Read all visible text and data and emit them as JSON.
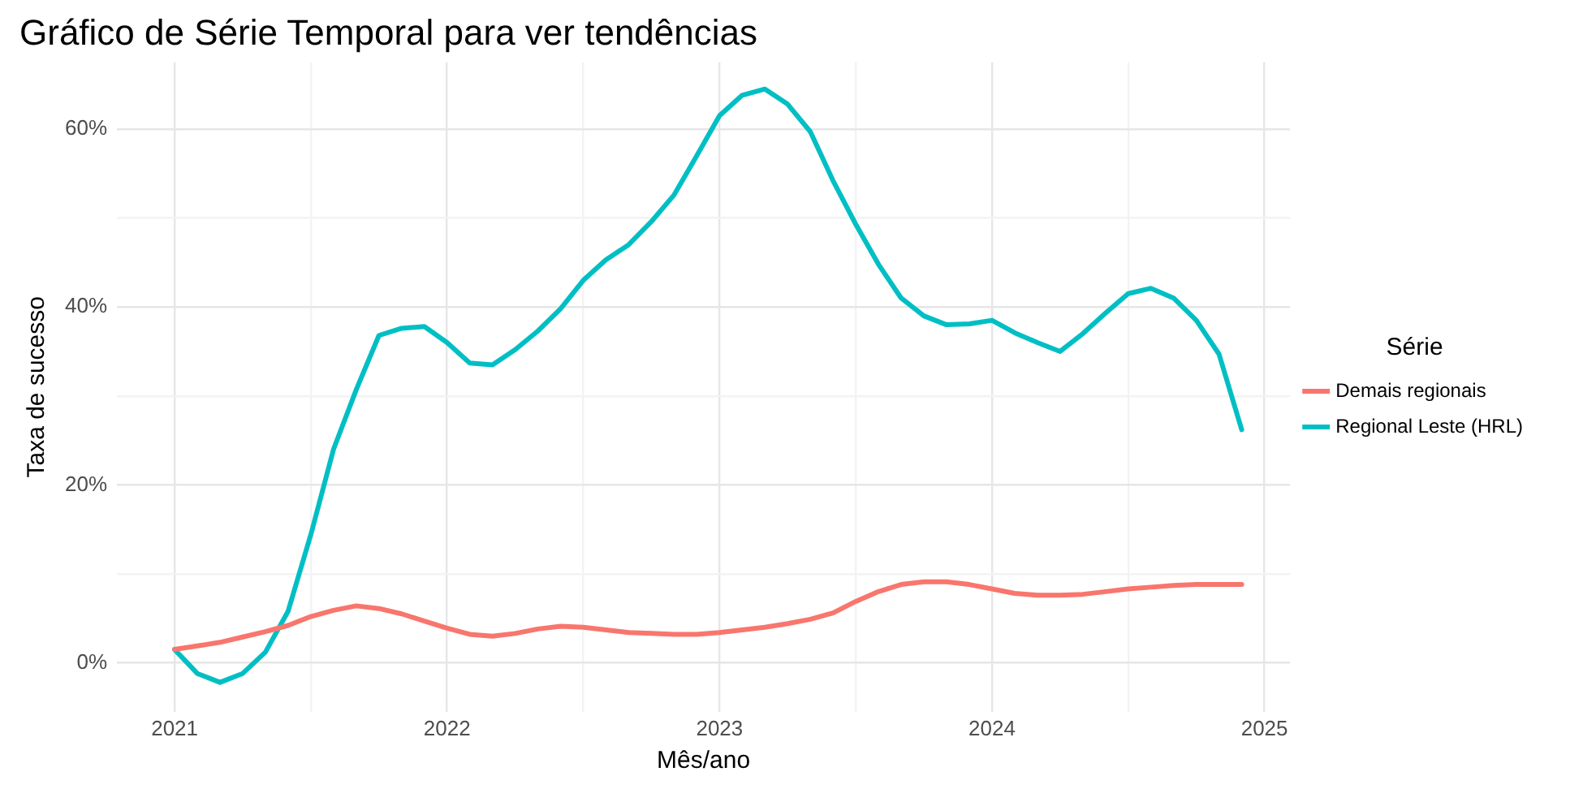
{
  "chart_data": {
    "type": "line",
    "title": "Gráfico de Série Temporal para ver tendências",
    "xlabel": "Mês/ano",
    "ylabel": "Taxa de sucesso",
    "legend_title": "Série",
    "legend": "right",
    "grid": true,
    "marker": "none",
    "line_style": "solid",
    "x": [
      "2021-01",
      "2021-02",
      "2021-03",
      "2021-04",
      "2021-05",
      "2021-06",
      "2021-07",
      "2021-08",
      "2021-09",
      "2021-10",
      "2021-11",
      "2021-12",
      "2022-01",
      "2022-02",
      "2022-03",
      "2022-04",
      "2022-05",
      "2022-06",
      "2022-07",
      "2022-08",
      "2022-09",
      "2022-10",
      "2022-11",
      "2022-12",
      "2023-01",
      "2023-02",
      "2023-03",
      "2023-04",
      "2023-05",
      "2023-06",
      "2023-07",
      "2023-08",
      "2023-09",
      "2023-10",
      "2023-11",
      "2023-12",
      "2024-01",
      "2024-02",
      "2024-03",
      "2024-04",
      "2024-05",
      "2024-06",
      "2024-07",
      "2024-08",
      "2024-09",
      "2024-10",
      "2024-11",
      "2024-12"
    ],
    "series": [
      {
        "name": "Demais regionais",
        "color": "#f8766d",
        "values": [
          1.5,
          1.9,
          2.3,
          2.9,
          3.5,
          4.2,
          5.2,
          5.9,
          6.4,
          6.1,
          5.5,
          4.7,
          3.9,
          3.2,
          3.0,
          3.3,
          3.8,
          4.1,
          4.0,
          3.7,
          3.4,
          3.3,
          3.2,
          3.2,
          3.4,
          3.7,
          4.0,
          4.4,
          4.9,
          5.6,
          6.9,
          8.0,
          8.8,
          9.1,
          9.1,
          8.8,
          8.3,
          7.8,
          7.6,
          7.6,
          7.7,
          8.0,
          8.3,
          8.5,
          8.7,
          8.8,
          8.8,
          8.8
        ]
      },
      {
        "name": "Regional Leste (HRL)",
        "color": "#00bfc4",
        "values": [
          1.5,
          -1.2,
          -2.2,
          -1.2,
          1.2,
          5.8,
          14.4,
          24,
          30.7,
          36.8,
          37.6,
          37.8,
          36,
          33.7,
          33.5,
          35.2,
          37.3,
          39.8,
          43,
          45.3,
          47,
          49.6,
          52.6,
          57,
          61.5,
          63.8,
          64.5,
          62.8,
          59.7,
          54.2,
          49.3,
          44.8,
          41,
          39,
          38,
          38.1,
          38.5,
          37.1,
          36,
          35,
          37,
          39.3,
          41.5,
          42.1,
          41,
          38.5,
          34.7,
          26.2
        ]
      }
    ],
    "xlim": [
      "2020-10-15",
      "2025-02-05"
    ],
    "xticks": [
      {
        "value": "2021",
        "label": "2021"
      },
      {
        "value": "2021-07",
        "label": null
      },
      {
        "value": "2022",
        "label": "2022"
      },
      {
        "value": "2022-07",
        "label": null
      },
      {
        "value": "2023",
        "label": "2023"
      },
      {
        "value": "2023-07",
        "label": null
      },
      {
        "value": "2024",
        "label": "2024"
      },
      {
        "value": "2024-07",
        "label": null
      },
      {
        "value": "2025",
        "label": "2025"
      }
    ],
    "ylim": [
      -5.5,
      67.5
    ],
    "yticks": [
      {
        "value": 0,
        "label": "0%"
      },
      {
        "value": 10,
        "label": null
      },
      {
        "value": 20,
        "label": "20%"
      },
      {
        "value": 30,
        "label": null
      },
      {
        "value": 40,
        "label": "40%"
      },
      {
        "value": 50,
        "label": null
      },
      {
        "value": 60,
        "label": "60%"
      }
    ]
  }
}
